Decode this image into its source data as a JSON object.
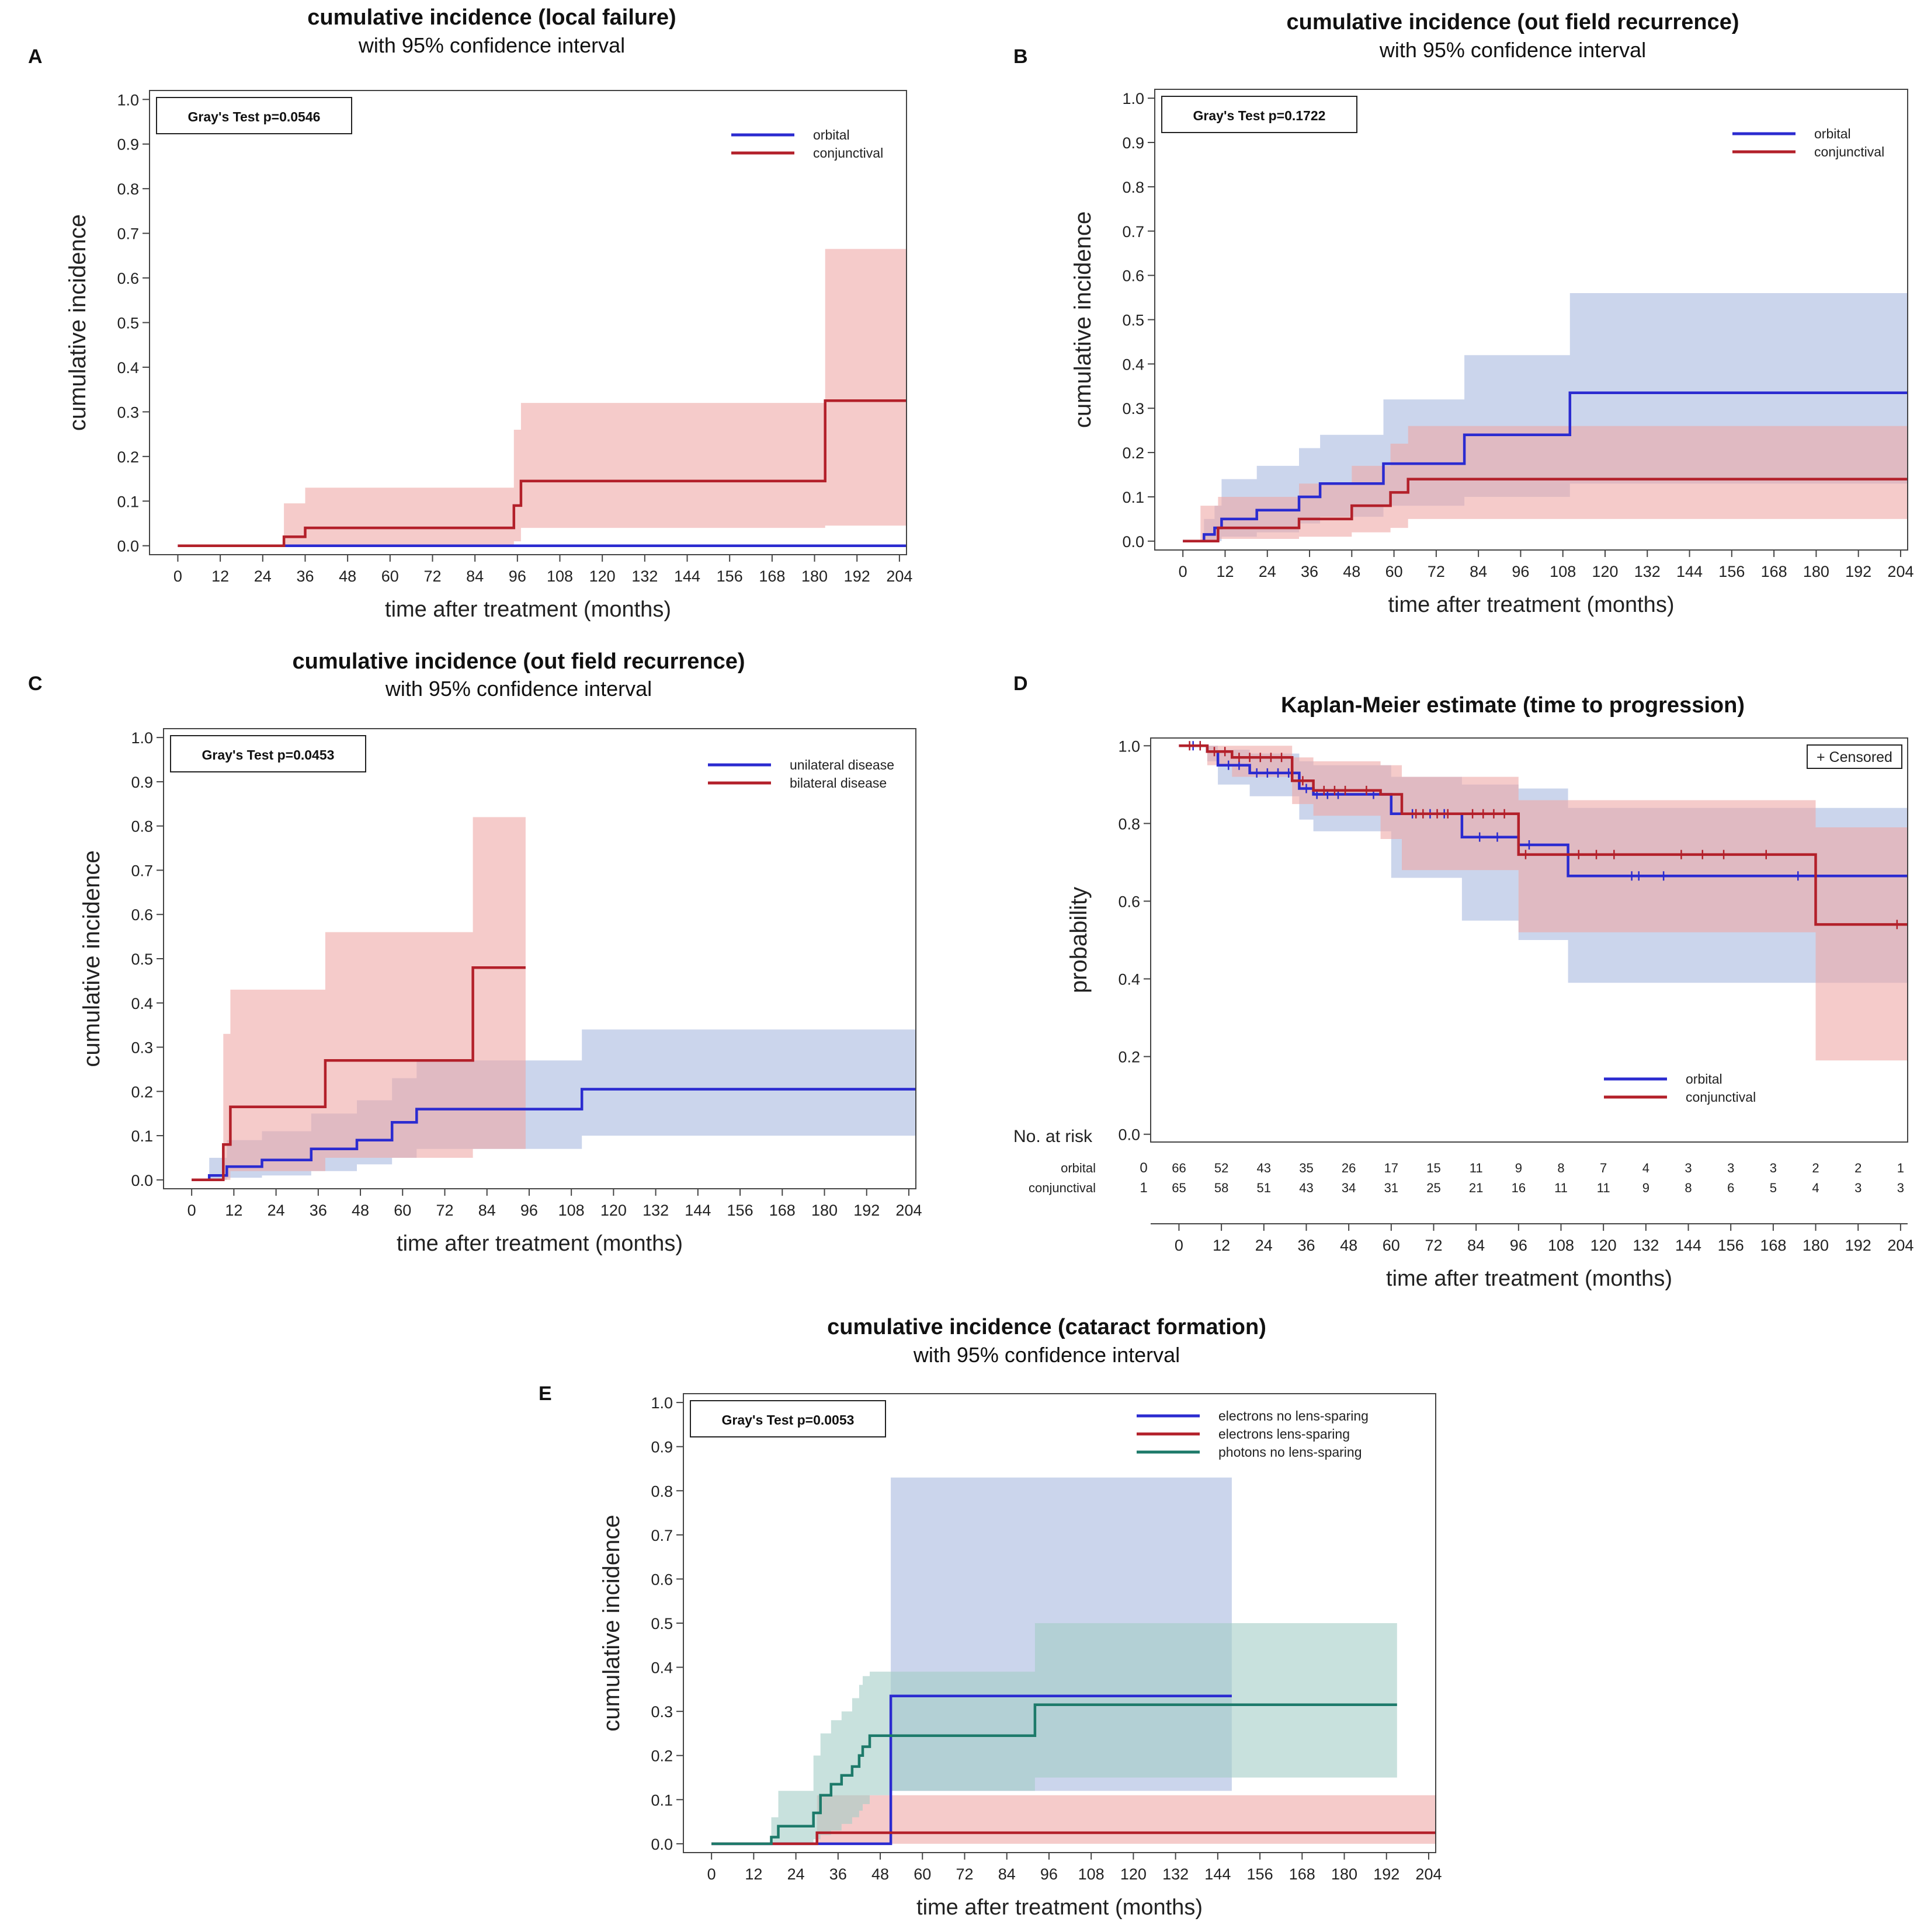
{
  "colors": {
    "blue": "#2b2bd0",
    "red": "#b3202a",
    "teal": "#1d7a6a",
    "blue_band": "#a9b9e0",
    "red_band": "#eea9a6",
    "teal_band": "#a3cdc6"
  },
  "chart_data": [
    {
      "id": "A",
      "panel_label": "A",
      "type": "line",
      "title": "cumulative incidence (local failure)",
      "subtitle": "with 95% confidence interval",
      "xlabel": "time after treatment (months)",
      "ylabel": "cumulative incidence",
      "xlim": [
        -8,
        206
      ],
      "ylim": [
        -0.02,
        1.02
      ],
      "xticks": [
        0,
        12,
        24,
        36,
        48,
        60,
        72,
        84,
        96,
        108,
        120,
        132,
        144,
        156,
        168,
        180,
        192,
        204
      ],
      "yticks": [
        0.0,
        0.1,
        0.2,
        0.3,
        0.4,
        0.5,
        0.6,
        0.7,
        0.8,
        0.9,
        1.0
      ],
      "test_label": "Gray's Test p=0.0546",
      "legend_position": "top-right",
      "series": [
        {
          "name": "orbital",
          "color": "blue",
          "x": [
            0,
            206
          ],
          "y": [
            0,
            0
          ],
          "band": {
            "x": [
              0,
              206
            ],
            "lo": [
              0,
              0
            ],
            "hi": [
              0,
              0
            ]
          }
        },
        {
          "name": "conjunctival",
          "color": "red",
          "x": [
            0,
            30,
            36,
            95,
            97,
            183,
            206
          ],
          "y": [
            0,
            0.02,
            0.04,
            0.09,
            0.145,
            0.325,
            0.325
          ],
          "band": {
            "x": [
              0,
              30,
              36,
              95,
              97,
              183,
              206
            ],
            "lo": [
              0,
              0,
              0,
              0.01,
              0.04,
              0.045,
              0.045
            ],
            "hi": [
              0,
              0.095,
              0.13,
              0.26,
              0.32,
              0.665,
              0.665
            ]
          }
        }
      ]
    },
    {
      "id": "B",
      "panel_label": "B",
      "type": "line",
      "title": "cumulative incidence (out field recurrence)",
      "subtitle": "with 95% confidence interval",
      "xlabel": "time after treatment (months)",
      "ylabel": "cumulative incidence",
      "xlim": [
        -8,
        206
      ],
      "ylim": [
        -0.02,
        1.02
      ],
      "xticks": [
        0,
        12,
        24,
        36,
        48,
        60,
        72,
        84,
        96,
        108,
        120,
        132,
        144,
        156,
        168,
        180,
        192,
        204
      ],
      "yticks": [
        0.0,
        0.1,
        0.2,
        0.3,
        0.4,
        0.5,
        0.6,
        0.7,
        0.8,
        0.9,
        1.0
      ],
      "test_label": "Gray's Test p=0.1722",
      "legend_position": "top-right",
      "series": [
        {
          "name": "orbital",
          "color": "blue",
          "x": [
            0,
            6,
            9,
            11,
            21,
            33,
            39,
            57,
            80,
            110,
            206
          ],
          "y": [
            0,
            0.015,
            0.03,
            0.05,
            0.07,
            0.1,
            0.13,
            0.175,
            0.24,
            0.335,
            0.335
          ],
          "band": {
            "x": [
              0,
              6,
              9,
              11,
              21,
              33,
              39,
              57,
              80,
              110,
              206
            ],
            "lo": [
              0,
              0,
              0,
              0.01,
              0.02,
              0.04,
              0.055,
              0.08,
              0.1,
              0.13,
              0.13
            ],
            "hi": [
              0,
              0.05,
              0.08,
              0.14,
              0.17,
              0.21,
              0.24,
              0.32,
              0.42,
              0.56,
              0.56
            ]
          }
        },
        {
          "name": "conjunctival",
          "color": "red",
          "x": [
            0,
            10,
            33,
            48,
            59,
            64,
            206
          ],
          "y": [
            0,
            0.03,
            0.05,
            0.08,
            0.11,
            0.14,
            0.14
          ],
          "band": {
            "x": [
              0,
              5,
              10,
              33,
              48,
              59,
              64,
              206
            ],
            "lo": [
              0,
              0,
              0.005,
              0.01,
              0.02,
              0.03,
              0.05,
              0.05
            ],
            "hi": [
              0,
              0.08,
              0.1,
              0.13,
              0.17,
              0.22,
              0.26,
              0.26
            ]
          }
        }
      ]
    },
    {
      "id": "C",
      "panel_label": "C",
      "type": "line",
      "title": "cumulative incidence (out field recurrence)",
      "subtitle": "with 95% confidence interval",
      "xlabel": "time after treatment (months)",
      "ylabel": "cumulative incidence",
      "xlim": [
        -8,
        206
      ],
      "ylim": [
        -0.02,
        1.02
      ],
      "xticks": [
        0,
        12,
        24,
        36,
        48,
        60,
        72,
        84,
        96,
        108,
        120,
        132,
        144,
        156,
        168,
        180,
        192,
        204
      ],
      "yticks": [
        0.0,
        0.1,
        0.2,
        0.3,
        0.4,
        0.5,
        0.6,
        0.7,
        0.8,
        0.9,
        1.0
      ],
      "test_label": "Gray's Test p=0.0453",
      "legend_position": "top-right",
      "series": [
        {
          "name": "unilateral disease",
          "color": "blue",
          "x": [
            0,
            5,
            10,
            20,
            34,
            47,
            57,
            64,
            111,
            206
          ],
          "y": [
            0,
            0.01,
            0.03,
            0.045,
            0.07,
            0.09,
            0.13,
            0.16,
            0.205,
            0.205
          ],
          "band": {
            "x": [
              0,
              5,
              10,
              20,
              34,
              47,
              57,
              64,
              111,
              206
            ],
            "lo": [
              0,
              0,
              0.005,
              0.01,
              0.02,
              0.035,
              0.05,
              0.07,
              0.1,
              0.1
            ],
            "hi": [
              0,
              0.05,
              0.09,
              0.11,
              0.15,
              0.18,
              0.23,
              0.27,
              0.34,
              0.34
            ]
          }
        },
        {
          "name": "bilateral disease",
          "color": "red",
          "x": [
            0,
            9,
            11,
            38,
            80,
            95
          ],
          "y": [
            0,
            0.08,
            0.165,
            0.27,
            0.48,
            0.48
          ],
          "band": {
            "x": [
              0,
              9,
              11,
              38,
              80,
              95
            ],
            "lo": [
              0,
              0,
              0.02,
              0.05,
              0.07,
              0.07
            ],
            "hi": [
              0,
              0.33,
              0.43,
              0.56,
              0.82,
              0.82
            ]
          }
        }
      ]
    },
    {
      "id": "D",
      "panel_label": "D",
      "type": "line",
      "title": "Kaplan-Meier estimate (time to progression)",
      "xlabel": "time after treatment (months)",
      "ylabel": "probability",
      "xlim": [
        -8,
        206
      ],
      "ylim": [
        -0.02,
        1.02
      ],
      "xticks": [
        0,
        12,
        24,
        36,
        48,
        60,
        72,
        84,
        96,
        108,
        120,
        132,
        144,
        156,
        168,
        180,
        192,
        204
      ],
      "yticks": [
        0.0,
        0.2,
        0.4,
        0.6,
        0.8,
        1.0
      ],
      "censored_label": "+ Censored",
      "legend_position": "bottom-right",
      "at_risk": {
        "title": "No. at risk",
        "rows": [
          {
            "name": "orbital",
            "code": "0",
            "counts": [
              "66",
              "52",
              "43",
              "35",
              "26",
              "17",
              "15",
              "11",
              "9",
              "8",
              "7",
              "4",
              "3",
              "3",
              "3",
              "2",
              "2",
              "1"
            ]
          },
          {
            "name": "conjunctival",
            "code": "1",
            "counts": [
              "65",
              "58",
              "51",
              "43",
              "34",
              "31",
              "25",
              "21",
              "16",
              "11",
              "11",
              "9",
              "8",
              "6",
              "5",
              "4",
              "3",
              "3"
            ]
          }
        ]
      },
      "series": [
        {
          "name": "orbital",
          "color": "blue",
          "x": [
            0,
            8,
            11,
            20,
            34,
            38,
            60,
            80,
            96,
            110,
            206
          ],
          "y": [
            1.0,
            0.985,
            0.95,
            0.93,
            0.89,
            0.875,
            0.825,
            0.765,
            0.745,
            0.665,
            0.665
          ],
          "censor_x": [
            4,
            6,
            14,
            17,
            22,
            25,
            28,
            31,
            36,
            39,
            42,
            45,
            55,
            66,
            71,
            75,
            85,
            90,
            99,
            128,
            130,
            137,
            175
          ],
          "band": {
            "x": [
              0,
              8,
              11,
              20,
              34,
              38,
              60,
              80,
              96,
              110,
              206
            ],
            "lo": [
              1.0,
              0.96,
              0.9,
              0.87,
              0.81,
              0.78,
              0.66,
              0.55,
              0.5,
              0.39,
              0.39
            ],
            "hi": [
              1.0,
              1.0,
              0.99,
              0.98,
              0.96,
              0.95,
              0.92,
              0.9,
              0.89,
              0.84,
              0.84
            ]
          }
        },
        {
          "name": "conjunctival",
          "color": "red",
          "x": [
            0,
            8,
            15,
            32,
            38,
            57,
            63,
            94,
            96,
            180,
            206
          ],
          "y": [
            1.0,
            0.985,
            0.97,
            0.91,
            0.885,
            0.875,
            0.825,
            0.825,
            0.72,
            0.54,
            0.54
          ],
          "censor_x": [
            3,
            6,
            10,
            13,
            17,
            20,
            23,
            26,
            29,
            35,
            41,
            44,
            47,
            53,
            67,
            69,
            73,
            76,
            83,
            86,
            89,
            92,
            98,
            113,
            118,
            123,
            142,
            148,
            154,
            166,
            203
          ],
          "band": {
            "x": [
              0,
              8,
              15,
              32,
              38,
              57,
              63,
              94,
              96,
              180,
              206
            ],
            "lo": [
              1.0,
              0.95,
              0.92,
              0.85,
              0.82,
              0.76,
              0.68,
              0.68,
              0.52,
              0.19,
              0.19
            ],
            "hi": [
              1.0,
              1.0,
              1.0,
              0.97,
              0.96,
              0.95,
              0.92,
              0.92,
              0.86,
              0.79,
              0.79
            ]
          }
        }
      ]
    },
    {
      "id": "E",
      "panel_label": "E",
      "type": "line",
      "title": "cumulative incidence (cataract formation)",
      "subtitle": "with 95% confidence interval",
      "xlabel": "time after treatment (months)",
      "ylabel": "cumulative incidence",
      "xlim": [
        -8,
        206
      ],
      "ylim": [
        -0.02,
        1.02
      ],
      "xticks": [
        0,
        12,
        24,
        36,
        48,
        60,
        72,
        84,
        96,
        108,
        120,
        132,
        144,
        156,
        168,
        180,
        192,
        204
      ],
      "yticks": [
        0.0,
        0.1,
        0.2,
        0.3,
        0.4,
        0.5,
        0.6,
        0.7,
        0.8,
        0.9,
        1.0
      ],
      "test_label": "Gray's Test p=0.0053",
      "legend_position": "top-right",
      "series": [
        {
          "name": "electrons no lens-sparing",
          "color": "blue",
          "x": [
            0,
            51,
            148
          ],
          "y": [
            0,
            0.335,
            0.335
          ],
          "band": {
            "x": [
              0,
              51,
              148
            ],
            "lo": [
              0,
              0.12,
              0.12
            ],
            "hi": [
              0,
              0.83,
              0.83
            ]
          }
        },
        {
          "name": "electrons lens-sparing",
          "color": "red",
          "x": [
            0,
            30,
            206
          ],
          "y": [
            0,
            0.025,
            0.025
          ],
          "band": {
            "x": [
              0,
              30,
              206
            ],
            "lo": [
              0,
              0,
              0
            ],
            "hi": [
              0,
              0.11,
              0.11
            ]
          }
        },
        {
          "name": "photons no lens-sparing",
          "color": "teal",
          "x": [
            0,
            17,
            19,
            29,
            31,
            34,
            37,
            40,
            42,
            43,
            45,
            51,
            92,
            195
          ],
          "y": [
            0,
            0.015,
            0.04,
            0.07,
            0.11,
            0.135,
            0.155,
            0.175,
            0.2,
            0.22,
            0.245,
            0.245,
            0.315,
            0.315
          ],
          "band": {
            "x": [
              0,
              17,
              19,
              29,
              31,
              34,
              37,
              40,
              42,
              43,
              45,
              51,
              92,
              195
            ],
            "lo": [
              0,
              0,
              0,
              0.01,
              0.02,
              0.03,
              0.045,
              0.06,
              0.075,
              0.09,
              0.11,
              0.12,
              0.15,
              0.15
            ],
            "hi": [
              0,
              0.06,
              0.12,
              0.2,
              0.25,
              0.28,
              0.3,
              0.33,
              0.36,
              0.38,
              0.39,
              0.39,
              0.5,
              0.5
            ]
          }
        }
      ]
    }
  ]
}
